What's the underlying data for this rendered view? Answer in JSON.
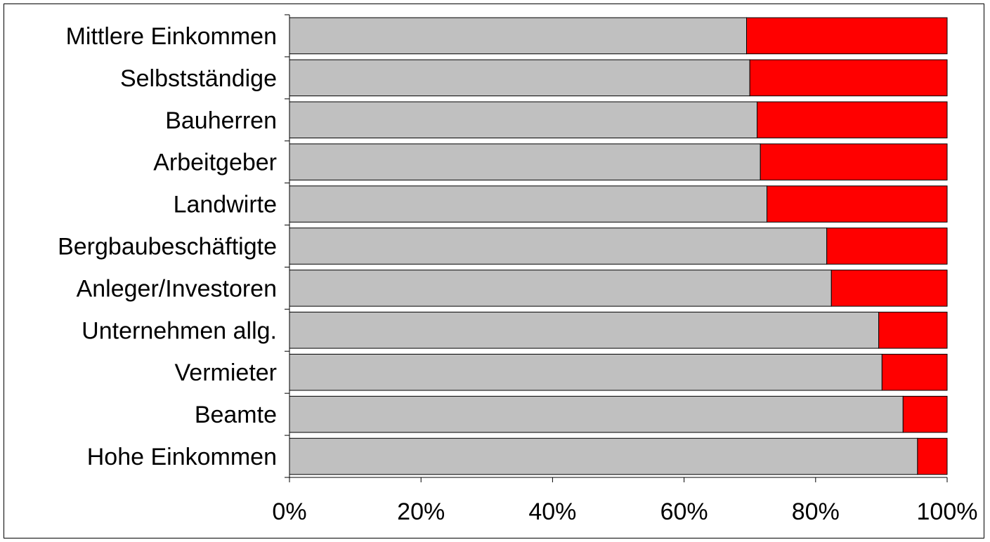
{
  "chart_data": {
    "type": "bar",
    "orientation": "horizontal",
    "stacked": "percent",
    "categories": [
      "Mittlere Einkommen",
      "Selbstständige",
      "Bauherren",
      "Arbeitgeber",
      "Landwirte",
      "Bergbaubeschäftigte",
      "Anleger/Investoren",
      "Unternehmen allg.",
      "Vermieter",
      "Beamte",
      "Hohe Einkommen"
    ],
    "series": [
      {
        "color": "#c0c0c0",
        "values": [
          69.5,
          70.0,
          71.1,
          71.6,
          72.6,
          81.7,
          82.4,
          89.6,
          90.1,
          93.3,
          95.5
        ]
      },
      {
        "color": "#ff0000",
        "values": [
          30.5,
          30.0,
          28.9,
          28.4,
          27.4,
          18.3,
          17.6,
          10.4,
          9.9,
          6.7,
          4.5
        ]
      }
    ],
    "x_ticks": [
      "0%",
      "20%",
      "40%",
      "60%",
      "80%",
      "100%"
    ],
    "xlim": [
      0,
      100
    ],
    "legend": "none",
    "grid": false
  }
}
